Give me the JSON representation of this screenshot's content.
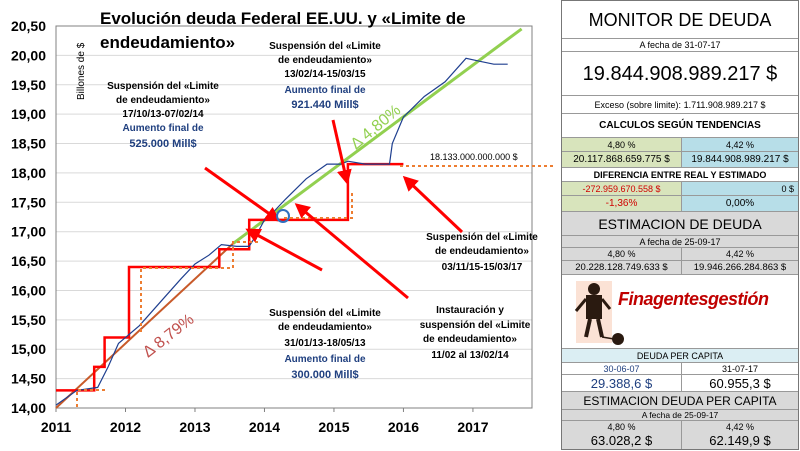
{
  "chart_data": {
    "type": "line",
    "title": "Evolución deuda Federal EE.UU. y «Limite de endeudamiento»",
    "ylabel": "Billones de $",
    "xlim": [
      2011,
      2017.85
    ],
    "ylim": [
      14.0,
      20.5
    ],
    "x_ticks": [
      "2011",
      "2012",
      "2013",
      "2014",
      "2015",
      "2016",
      "2017"
    ],
    "y_ticks": [
      "14,00",
      "14,50",
      "15,00",
      "15,50",
      "16,00",
      "16,50",
      "17,00",
      "17,50",
      "18,00",
      "18,50",
      "19,00",
      "19,50",
      "20,00",
      "20,50"
    ],
    "series": [
      {
        "name": "",
        "color": "#1f3f8f",
        "x": [
          2011.0,
          2011.3,
          2011.6,
          2011.75,
          2011.9,
          2012.2,
          2012.5,
          2012.8,
          2013.0,
          2013.2,
          2013.38,
          2013.6,
          2013.78,
          2013.9,
          2014.0,
          2014.1,
          2014.3,
          2014.6,
          2014.9,
          2015.1,
          2015.2,
          2015.45,
          2015.8,
          2015.84,
          2016.0,
          2016.3,
          2016.6,
          2016.9,
          2017.1,
          2017.3,
          2017.5
        ],
        "y": [
          14.05,
          14.3,
          14.35,
          14.7,
          15.1,
          15.4,
          15.8,
          16.2,
          16.45,
          16.6,
          16.78,
          16.75,
          16.75,
          16.98,
          17.2,
          17.3,
          17.55,
          17.9,
          18.15,
          18.15,
          18.2,
          18.15,
          18.15,
          18.5,
          18.95,
          19.3,
          19.55,
          19.95,
          19.9,
          19.85,
          19.85
        ]
      },
      {
        "name": "Limite de endeudamiento",
        "color": "#ff0000",
        "x": [
          2011.0,
          2011.55,
          2011.55,
          2011.7,
          2011.7,
          2012.05,
          2012.05,
          2013.35,
          2013.35,
          2013.78,
          2013.78,
          2015.2,
          2015.2,
          2015.82,
          2015.82,
          2016.0
        ],
        "y": [
          14.3,
          14.3,
          14.7,
          14.7,
          15.2,
          15.2,
          16.4,
          16.4,
          16.7,
          16.7,
          17.2,
          17.2,
          18.15,
          18.15,
          18.15,
          18.15
        ]
      },
      {
        "name": "Tendencia 8,79%",
        "color": "#c85a2a",
        "x": [
          2011.0,
          2013.55
        ],
        "y": [
          14.0,
          16.8
        ]
      },
      {
        "name": "Tendencia 4,80%",
        "color": "#92d050",
        "x": [
          2013.55,
          2017.7
        ],
        "y": [
          16.8,
          20.45
        ]
      }
    ],
    "annotations": {
      "ann1": {
        "l1": "Suspensión del «Limite",
        "l2": "de endeudamiento»",
        "l3": "17/10/13-07/02/14",
        "l4": "Aumento final de",
        "l5": "525.000 Mill$"
      },
      "ann2": {
        "l1": "Suspensión del «Limite",
        "l2": "de endeudamiento»",
        "l3": "13/02/14-15/03/15",
        "l4": "Aumento final de",
        "l5": "921.440 Mill$"
      },
      "ann3": {
        "l1": "Suspensión del «Limite",
        "l2": "de endeudamiento»",
        "l3": "31/01/13-18/05/13",
        "l4": "Aumento final de",
        "l5": "300.000 Mill$"
      },
      "ann4": {
        "l1": "Instauración y",
        "l2": "suspensión del «Limite",
        "l3": "de endeudamiento»",
        "l4": "11/02 al 13/02/14"
      },
      "ann5": {
        "l1": "Suspensión del «Limite",
        "l2": "de endeudamiento»",
        "l3": "03/11/15-15/03/17"
      },
      "rate_high": "Δ 8,79%",
      "rate_low": "Δ 4,80%",
      "limit_value": "18.133.000.000.000 $"
    }
  },
  "monitor": {
    "title": "MONITOR DE DEUDA",
    "date_label": "A fecha de",
    "date": "31-07-17",
    "debt": "19.844.908.989.217 $",
    "excess_label": "Exceso (sobre limite):",
    "excess_value": "1.711.908.989.217 $",
    "calc_title": "CALCULOS  SEGÚN TENDENCIAS",
    "pct_a": "4,80 %",
    "pct_b": "4,42 %",
    "calc_a": "20.117.868.659.775 $",
    "calc_b": "19.844.908.989.217 $",
    "diff_title": "DIFERENCIA ENTRE REAL Y ESTIMADO",
    "diff_a": "-272.959.670.558 $",
    "diff_b": "0 $",
    "diffpct_a": "-1,36%",
    "diffpct_b": "0,00%"
  },
  "estimate": {
    "title": "ESTIMACION DE DEUDA",
    "date_label": "A fecha de",
    "date": "25-09-17",
    "pct_a": "4,80 %",
    "pct_b": "4,42 %",
    "val_a": "20.228.128.749.633 $",
    "val_b": "19.946.266.284.863 $"
  },
  "logo_text": "Finagentesgestión",
  "capita": {
    "title": "DEUDA PER CAPITA",
    "date_a": "30-06-07",
    "date_b": "31-07-17",
    "val_a": "29.388,6 $",
    "val_b": "60.955,3 $"
  },
  "capita_est": {
    "title": "ESTIMACION DEUDA PER CAPITA",
    "date_label": "A fecha de",
    "date": "25-09-17",
    "pct_a": "4,80 %",
    "pct_b": "4,42 %",
    "val_a": "63.028,2 $",
    "val_b": "62.149,9 $"
  }
}
